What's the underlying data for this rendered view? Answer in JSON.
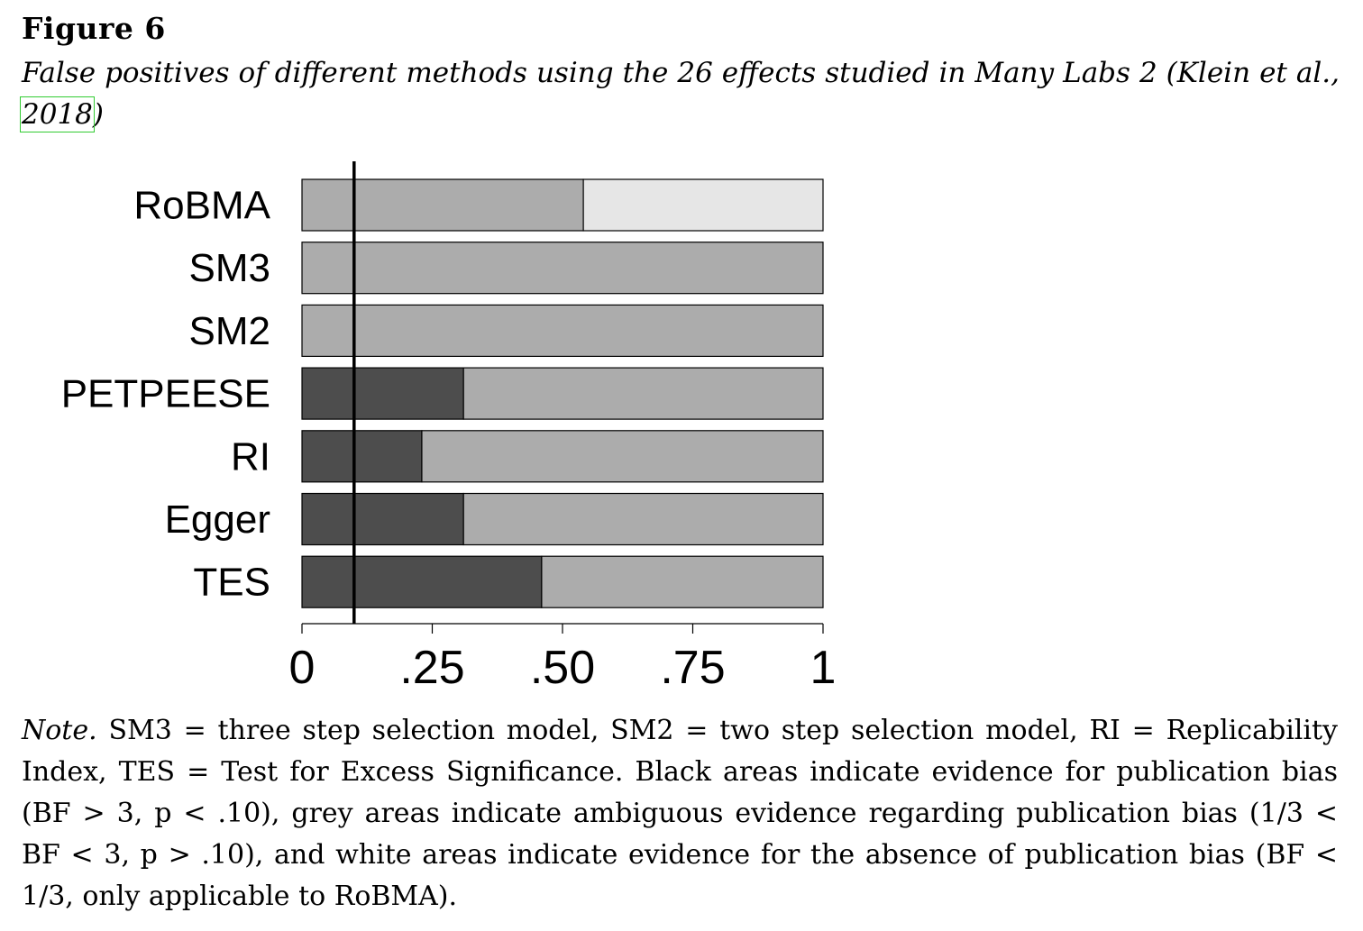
{
  "figure": {
    "label": "Figure 6",
    "caption_main": "False positives of different methods using the 26 effects studied in Many Labs 2 (Klein et al., ",
    "caption_citation": "2018",
    "caption_end": ")"
  },
  "note": {
    "lead": "Note.",
    "text": " SM3 = three step selection model, SM2 = two step selection model, RI = Replicability Index, TES = Test for Excess Significance. Black areas indicate evidence for publication bias (BF > 3, p < .10), grey areas indicate ambiguous evidence regarding publication bias (1/3 < BF < 3, p > .10), and white areas indicate evidence for the absence of publication bias (BF < 1/3, only applicable to RoBMA)."
  },
  "chart_data": {
    "type": "bar",
    "orientation": "horizontal",
    "stacked": true,
    "categories": [
      "RoBMA",
      "SM3",
      "SM2",
      "PETPEESE",
      "RI",
      "Egger",
      "TES"
    ],
    "series": [
      {
        "key": "black",
        "values": [
          0,
          0,
          0,
          0.31,
          0.23,
          0.31,
          0.46
        ]
      },
      {
        "key": "grey",
        "values": [
          0.54,
          1,
          1,
          0.69,
          0.77,
          0.69,
          0.54
        ]
      },
      {
        "key": "white",
        "values": [
          0.46,
          0,
          0,
          0,
          0,
          0,
          0
        ]
      }
    ],
    "colors": {
      "black": "#4d4d4d",
      "grey": "#acacac",
      "white": "#e6e6e6"
    },
    "xlim": [
      0,
      1
    ],
    "xticks": [
      0,
      0.25,
      0.5,
      0.75,
      1
    ],
    "xtick_labels": [
      "0",
      ".25",
      ".50",
      ".75",
      "1"
    ],
    "reference_line": 0.1,
    "xlabel": "",
    "ylabel": "",
    "grid": false
  }
}
